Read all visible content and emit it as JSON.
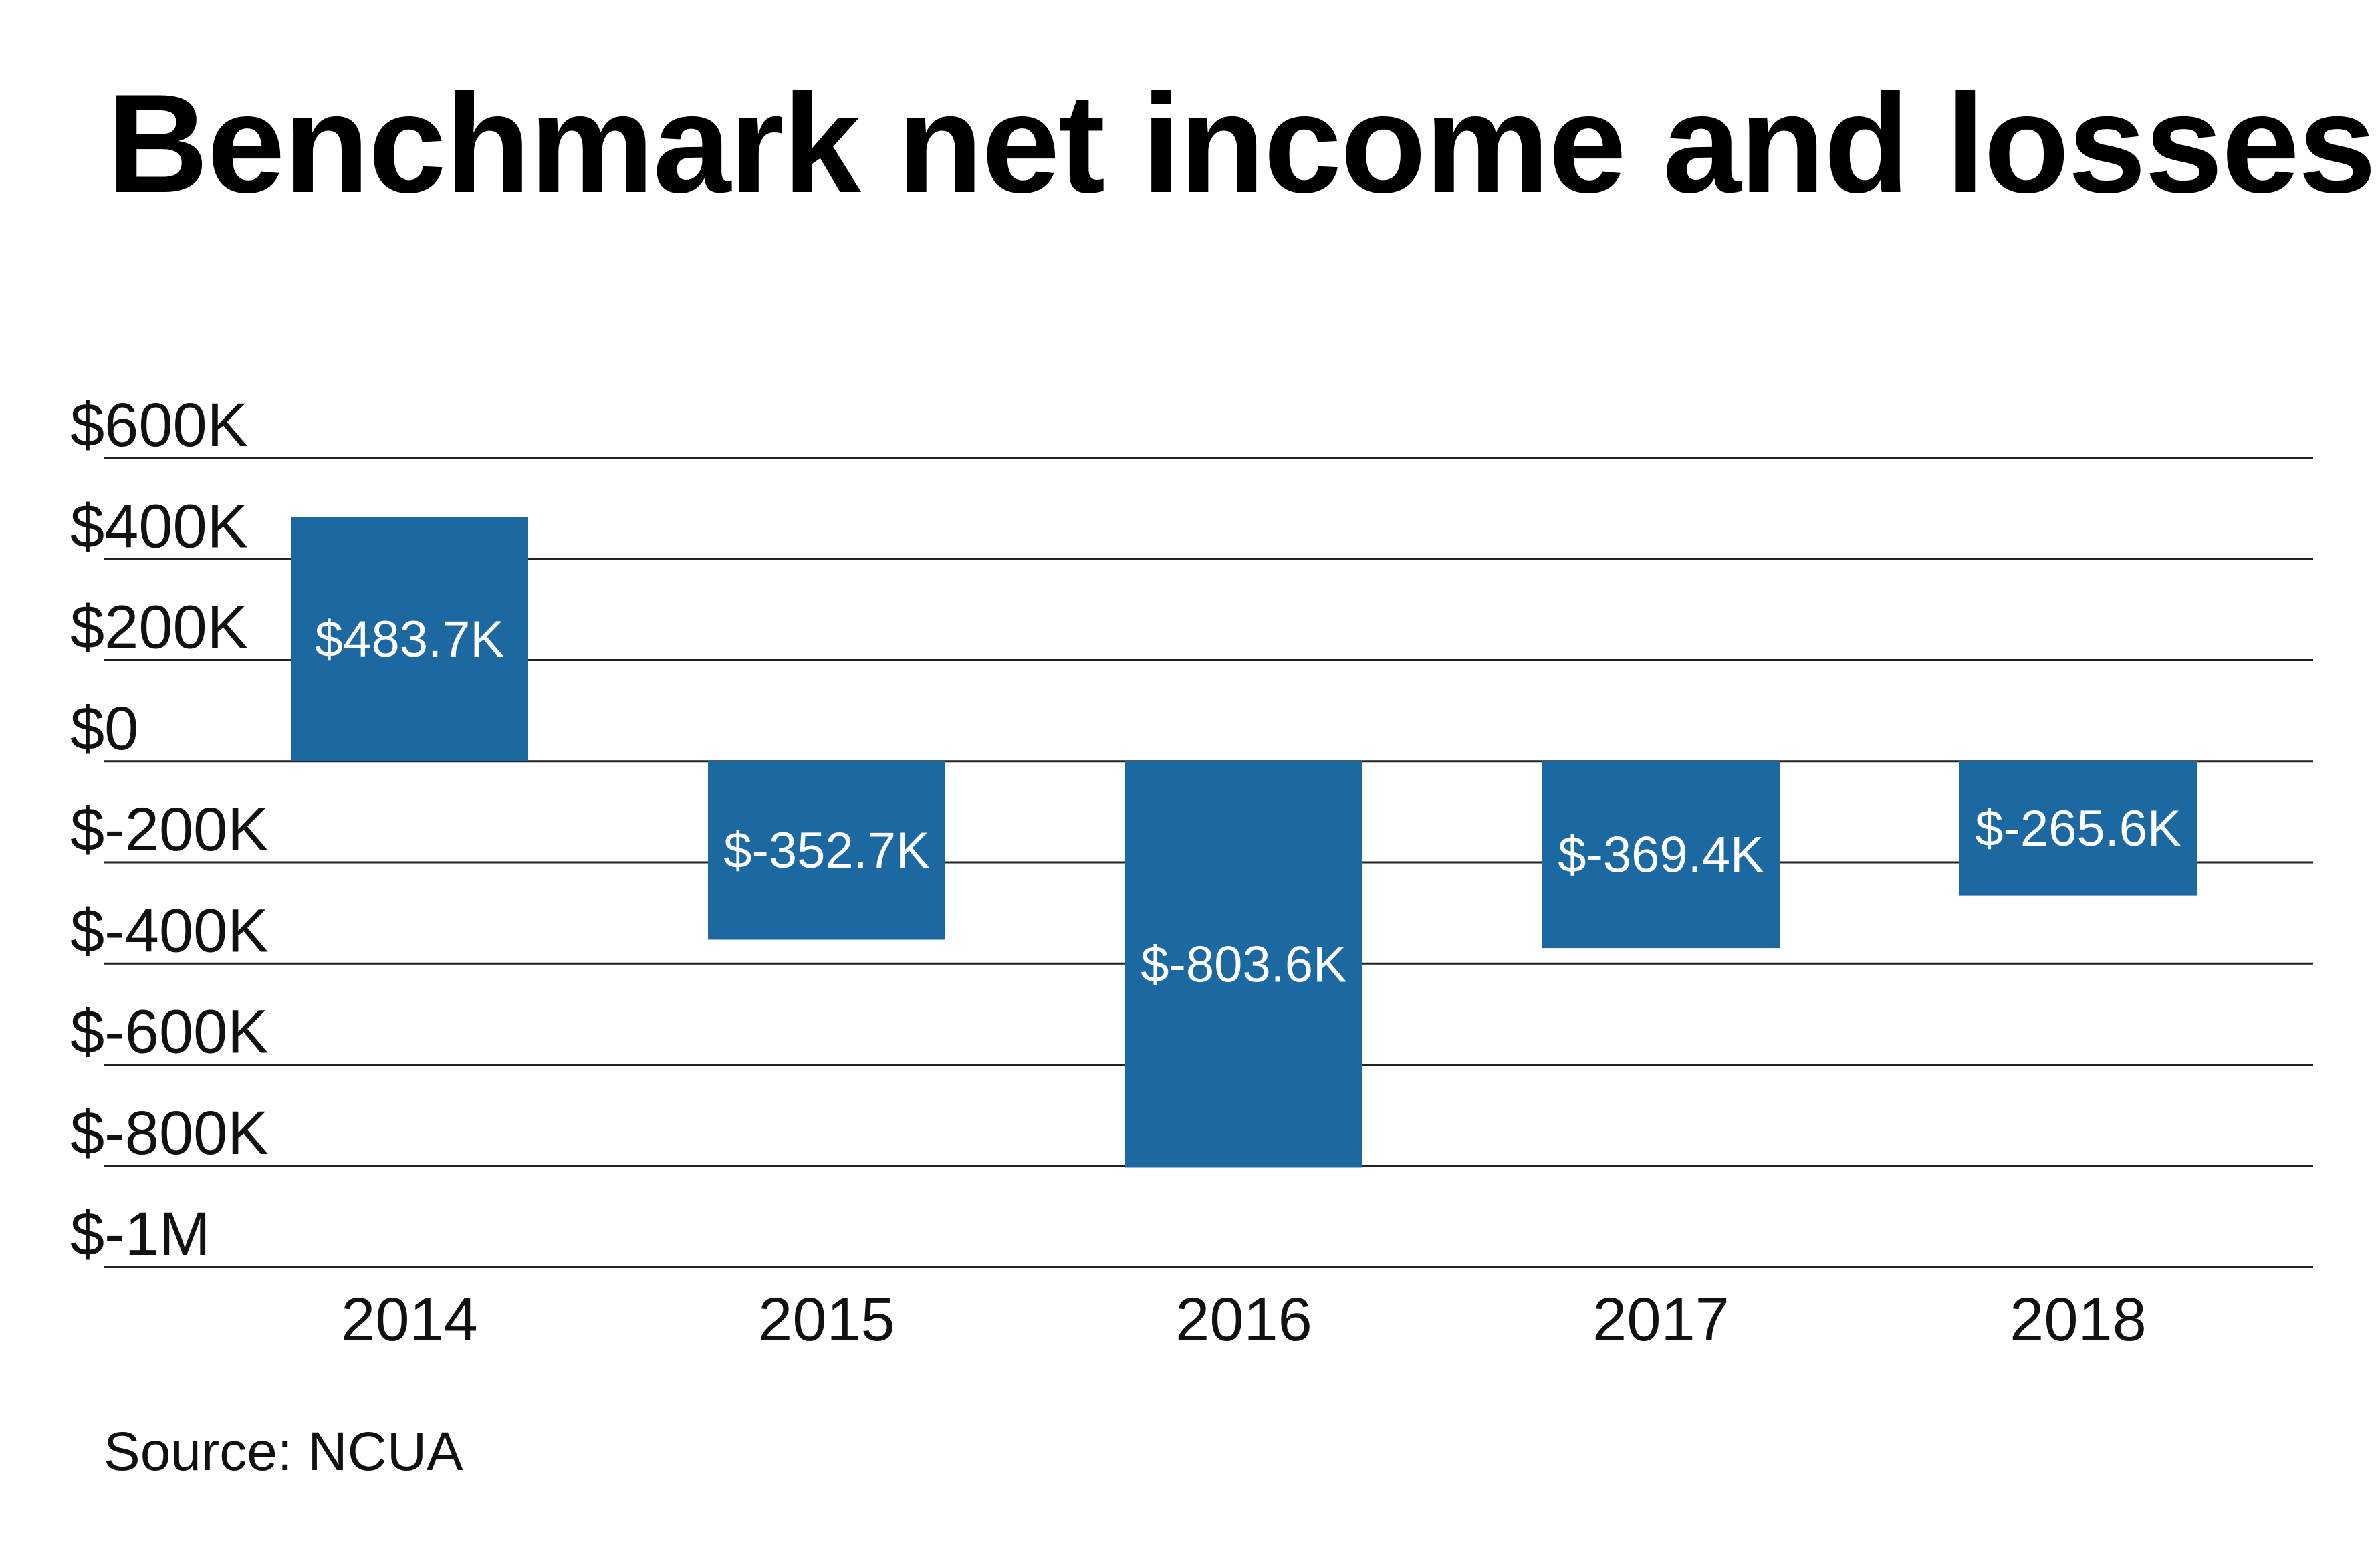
{
  "chart_data": {
    "type": "bar",
    "title": "Benchmark net income and losses",
    "categories": [
      "2014",
      "2015",
      "2016",
      "2017",
      "2018"
    ],
    "values": [
      483.7,
      -352.7,
      -803.6,
      -369.4,
      -265.6
    ],
    "data_labels": [
      "$483.7K",
      "$-352.7K",
      "$-803.6K",
      "$-369.4K",
      "$-265.6K"
    ],
    "unit": "thousands of dollars",
    "ylim": [
      -1000,
      600
    ],
    "yticks": [
      600,
      400,
      200,
      0,
      -200,
      -400,
      -600,
      -800,
      -1000
    ],
    "ytick_labels": [
      "$600K",
      "$400K",
      "$200K",
      "$0",
      "$-200K",
      "$-400K",
      "$-600K",
      "$-800K",
      "$-1M"
    ],
    "xlabel": "",
    "ylabel": "",
    "grid": true,
    "legend": "none",
    "bar_color": "#1c69a2",
    "source": "Source: NCUA"
  }
}
